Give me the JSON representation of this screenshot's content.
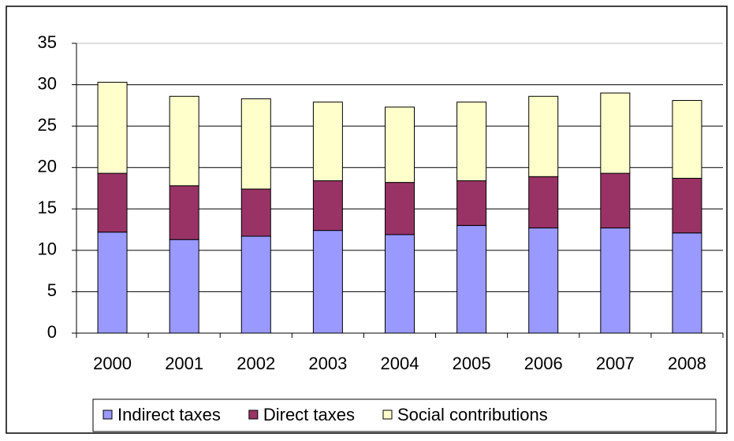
{
  "chart_data": {
    "type": "stacked-bar",
    "categories": [
      "2000",
      "2001",
      "2002",
      "2003",
      "2004",
      "2005",
      "2006",
      "2007",
      "2008"
    ],
    "series": [
      {
        "name": "Indirect taxes",
        "color": "#9999ff",
        "values": [
          12.2,
          11.3,
          11.7,
          12.4,
          11.9,
          13.0,
          12.7,
          12.7,
          12.1
        ]
      },
      {
        "name": "Direct taxes",
        "color": "#993366",
        "values": [
          7.1,
          6.5,
          5.7,
          6.0,
          6.3,
          5.4,
          6.2,
          6.6,
          6.6
        ]
      },
      {
        "name": "Social contributions",
        "color": "#ffffcc",
        "values": [
          11.0,
          10.8,
          10.9,
          9.5,
          9.1,
          9.5,
          9.7,
          9.7,
          9.4
        ]
      }
    ],
    "ylim": [
      0,
      35
    ],
    "yticks": [
      0,
      5,
      10,
      15,
      20,
      25,
      30,
      35
    ],
    "grid": true,
    "legend": "bottom"
  }
}
